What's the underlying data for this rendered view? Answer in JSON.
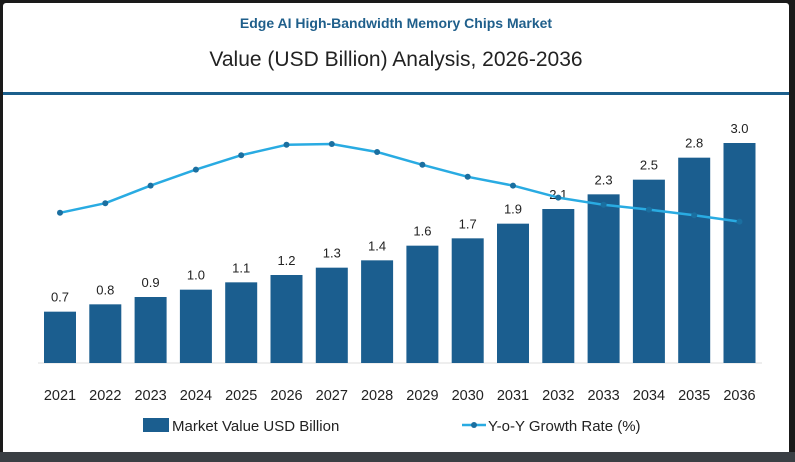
{
  "header": {
    "title": "Edge AI High-Bandwidth Memory Chips Market",
    "subtitle": "Value (USD Billion) Analysis, 2026-2036"
  },
  "colors": {
    "bar": "#1b5e8f",
    "line": "#29abe2",
    "accent_rule": "#1b5f8c",
    "title": "#1f5f8b"
  },
  "chart_data": {
    "type": "bar+line",
    "categories": [
      "2021",
      "2022",
      "2023",
      "2024",
      "2025",
      "2026",
      "2027",
      "2028",
      "2029",
      "2030",
      "2031",
      "2032",
      "2033",
      "2034",
      "2035",
      "2036"
    ],
    "series": [
      {
        "name": "Market Value USD Billion",
        "type": "bar",
        "values": [
          0.7,
          0.8,
          0.9,
          1.0,
          1.1,
          1.2,
          1.3,
          1.4,
          1.6,
          1.7,
          1.9,
          2.1,
          2.3,
          2.5,
          2.8,
          3.0
        ],
        "labels": [
          "0.7",
          "0.8",
          "0.9",
          "1.0",
          "1.1",
          "1.2",
          "1.3",
          "1.4",
          "1.6",
          "1.7",
          "1.9",
          "2.1",
          "2.3",
          "2.5",
          "2.8",
          "3.0"
        ]
      },
      {
        "name": "Y-o-Y Growth Rate (%)",
        "type": "line",
        "values": [
          5.9,
          7.1,
          9.3,
          11.3,
          13.1,
          14.4,
          14.5,
          13.5,
          11.9,
          10.4,
          9.3,
          7.8,
          6.9,
          6.3,
          5.6,
          4.8
        ]
      }
    ],
    "ylim": [
      0,
      3.0
    ],
    "grid": false,
    "legend": "bottom"
  }
}
